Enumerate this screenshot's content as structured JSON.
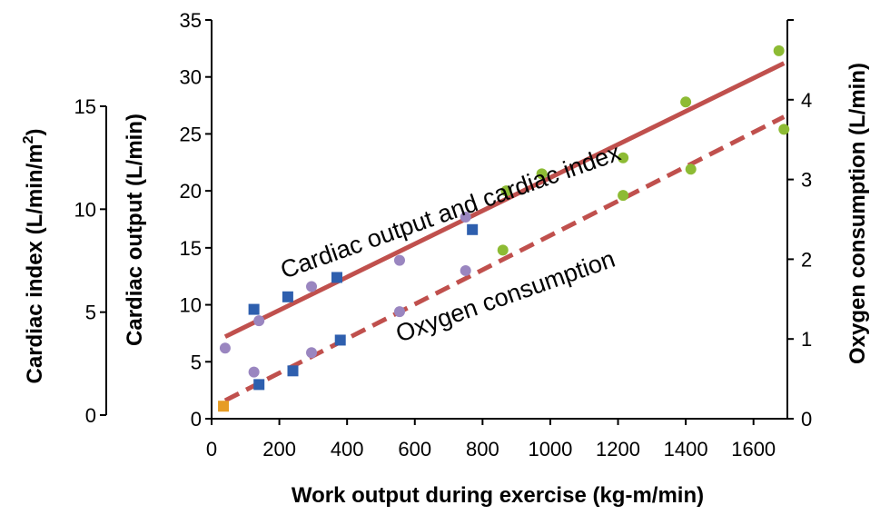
{
  "chart_data": {
    "type": "scatter",
    "title": "",
    "xlabel": "Work output during exercise (kg-m/min)",
    "xlim": [
      0,
      1700
    ],
    "x_ticks": [
      "0",
      "200",
      "400",
      "600",
      "800",
      "1000",
      "1200",
      "1400",
      "1600"
    ],
    "y_axes": {
      "cardiac_output": {
        "label": "Cardiac output (L/min)",
        "ylim": [
          0,
          35
        ],
        "ticks": [
          "0",
          "5",
          "10",
          "15",
          "20",
          "25",
          "30",
          "35"
        ]
      },
      "cardiac_index": {
        "label_main": "Cardiac index (L/min/m",
        "label_sup": "2",
        "label_end": ")",
        "ylim": [
          0,
          15
        ],
        "ticks": [
          "0",
          "5",
          "10",
          "15"
        ]
      },
      "oxygen_consumption": {
        "label": "Oxygen consumption (L/min)",
        "ylim": [
          0,
          5
        ],
        "ticks": [
          "0",
          "1",
          "2",
          "3",
          "4"
        ]
      }
    },
    "annotations": {
      "cardiac_line": "Cardiac output and cardiac index",
      "oxygen_line": "Oxygen consumption"
    },
    "fit_lines": [
      {
        "style": "solid",
        "color": "#c0504d",
        "x": [
          40,
          1690
        ],
        "y": [
          7.2,
          31.2
        ]
      },
      {
        "style": "dashed",
        "color": "#c0504d",
        "x": [
          40,
          1690
        ],
        "y": [
          1.6,
          26.5
        ]
      }
    ],
    "series": [
      {
        "color": "#e69c24",
        "shape": "square",
        "x": [
          35
        ],
        "y": [
          1.1
        ]
      },
      {
        "color": "#2e5fae",
        "shape": "square",
        "x": [
          125,
          140,
          225,
          240,
          370,
          380,
          770
        ],
        "y": [
          9.6,
          3.0,
          10.7,
          4.2,
          12.4,
          6.9,
          16.6
        ]
      },
      {
        "color": "#9a86c0",
        "shape": "circle",
        "x": [
          40,
          125,
          140,
          295,
          295,
          555,
          555,
          750,
          750
        ],
        "y": [
          6.2,
          4.1,
          8.6,
          11.6,
          5.8,
          13.9,
          9.4,
          17.7,
          13.0
        ]
      },
      {
        "color": "#8dbb34",
        "shape": "circle",
        "x": [
          860,
          870,
          975,
          1215,
          1215,
          1400,
          1415,
          1675,
          1690
        ],
        "y": [
          14.8,
          20.0,
          21.5,
          22.9,
          19.6,
          27.8,
          21.9,
          32.3,
          25.4
        ]
      }
    ]
  }
}
